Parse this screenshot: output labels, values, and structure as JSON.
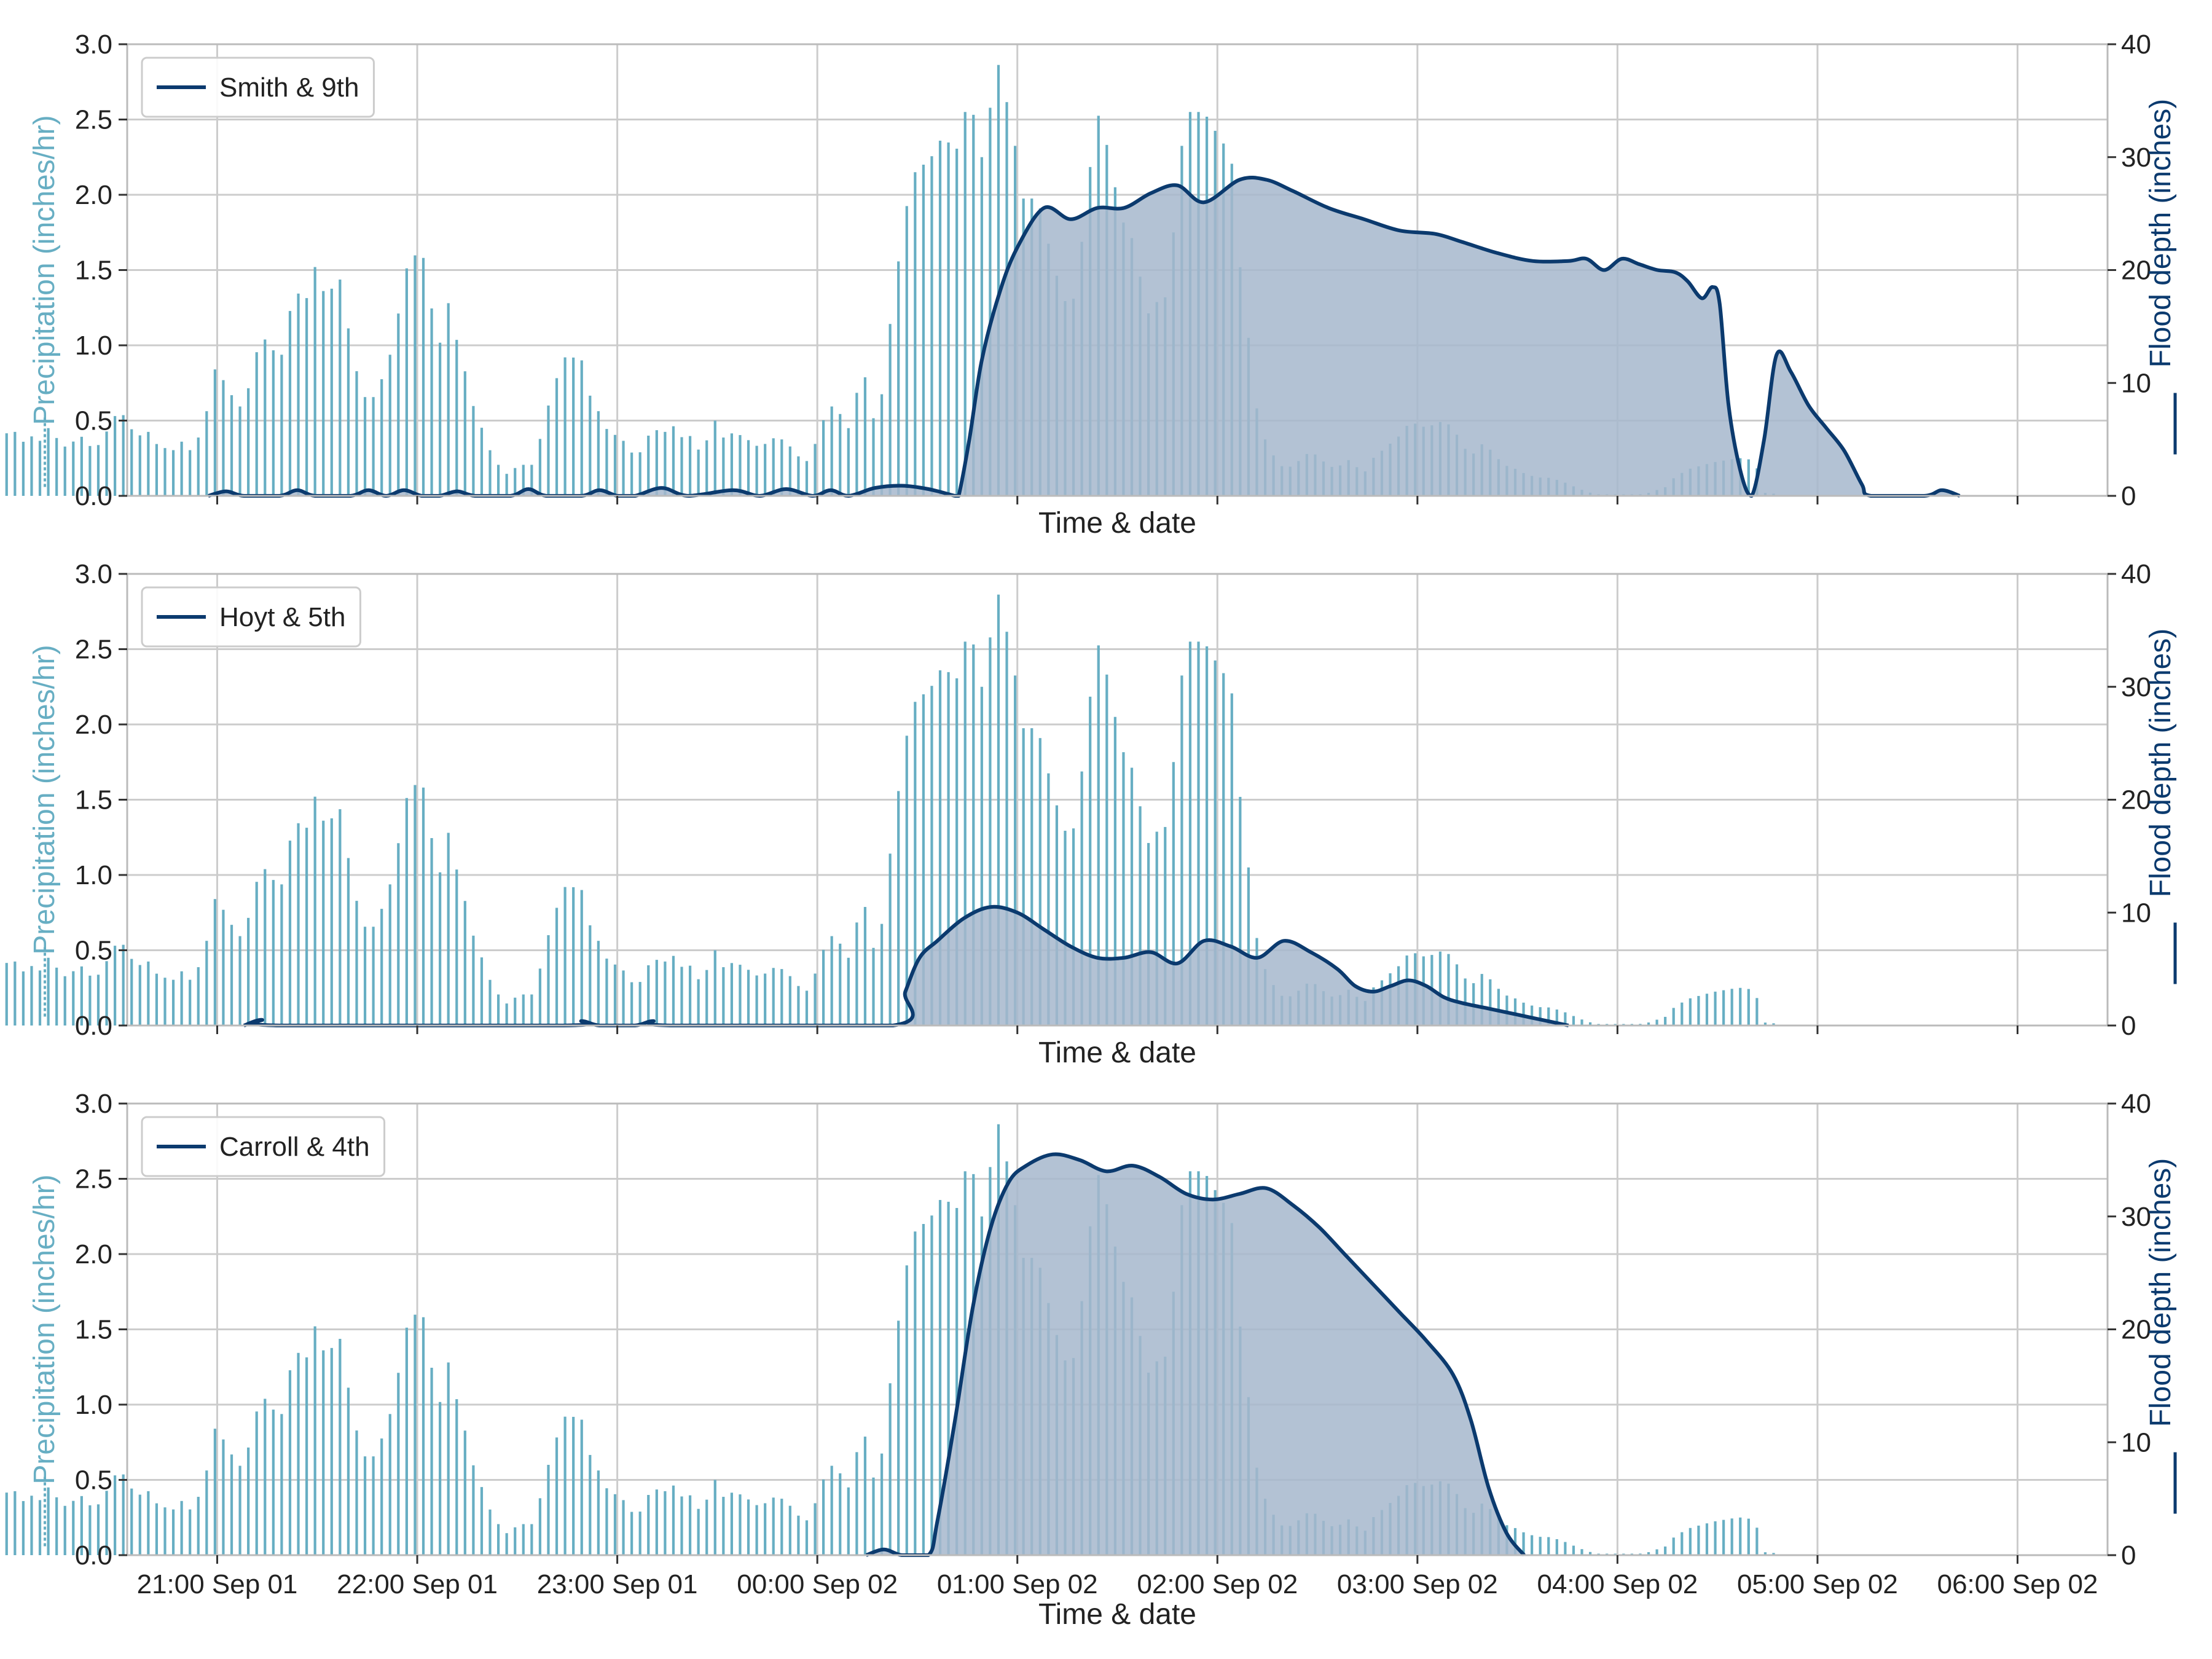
{
  "colors": {
    "precipitation": "#67aec3",
    "flood_line": "#0b3a6e",
    "flood_fill": "#a6b7cc",
    "grid": "#cccccc",
    "axes": "#bbbbbb",
    "text": "#222222"
  },
  "chart_data": {
    "type": "bar+area",
    "x_axis": {
      "label": "Time & date",
      "tick_labels": [
        "21:00 Sep 01",
        "22:00 Sep 01",
        "23:00 Sep 01",
        "00:00 Sep 02",
        "01:00 Sep 02",
        "02:00 Sep 02",
        "03:00 Sep 02",
        "04:00 Sep 02",
        "05:00 Sep 02",
        "06:00 Sep 02"
      ],
      "range_hours_after_2100": [
        -0.45,
        9.45
      ],
      "bar_interval_minutes": 2.5
    },
    "left_axis": {
      "label": "Precipitation (inches/hr)",
      "ylim": [
        0,
        3
      ],
      "ticks": [
        "0.0",
        "0.5",
        "1.0",
        "1.5",
        "2.0",
        "2.5",
        "3.0"
      ]
    },
    "right_axis": {
      "label": "Flood depth (inches)",
      "ylim": [
        0,
        40
      ],
      "ticks": [
        "0",
        "10",
        "20",
        "30",
        "40"
      ]
    },
    "grid": true,
    "legend_position": "top-left",
    "precipitation_anchors": [
      [
        0.1,
        0.13
      ],
      [
        0.12,
        0.12
      ],
      [
        0.15,
        0.1
      ],
      [
        0.19,
        0.08
      ],
      [
        0.23,
        0.08
      ],
      [
        0.27,
        0.02
      ],
      [
        0.32,
        0.03
      ],
      [
        0.38,
        0.02
      ],
      [
        0.42,
        0.02
      ],
      [
        0.48,
        0.01
      ],
      [
        0.55,
        0.01
      ],
      [
        0.6,
        0.01
      ],
      [
        0.65,
        0.02
      ],
      [
        0.7,
        0.08
      ],
      [
        0.75,
        0.15
      ],
      [
        0.8,
        0.25
      ],
      [
        0.85,
        0.35
      ],
      [
        0.9,
        0.4
      ],
      [
        0.95,
        0.42
      ],
      [
        1.0,
        0.3
      ],
      [
        1.05,
        0.38
      ],
      [
        1.1,
        0.36
      ],
      [
        1.15,
        0.33
      ],
      [
        1.2,
        0.4
      ],
      [
        1.25,
        0.47
      ],
      [
        1.3,
        0.56
      ],
      [
        1.35,
        0.4
      ],
      [
        1.4,
        0.45
      ],
      [
        1.45,
        0.35
      ],
      [
        1.5,
        0.4
      ],
      [
        1.55,
        0.36
      ],
      [
        1.6,
        0.45
      ],
      [
        1.65,
        0.38
      ],
      [
        1.7,
        0.32
      ],
      [
        1.75,
        0.37
      ],
      [
        1.8,
        0.4
      ],
      [
        1.85,
        0.3
      ],
      [
        1.9,
        0.36
      ],
      [
        1.95,
        0.48
      ],
      [
        2.0,
        0.58
      ],
      [
        2.05,
        0.48
      ],
      [
        2.1,
        0.38
      ],
      [
        2.15,
        0.45
      ],
      [
        2.2,
        0.35
      ],
      [
        2.25,
        0.32
      ],
      [
        2.3,
        0.3
      ],
      [
        2.35,
        0.36
      ],
      [
        2.4,
        0.3
      ],
      [
        2.45,
        0.4
      ],
      [
        2.5,
        0.6
      ],
      [
        2.55,
        0.92
      ],
      [
        2.6,
        0.7
      ],
      [
        2.65,
        0.65
      ],
      [
        2.7,
        0.55
      ],
      [
        2.75,
        0.88
      ],
      [
        2.8,
        1.05
      ],
      [
        2.85,
        1.02
      ],
      [
        2.9,
        0.85
      ],
      [
        2.95,
        1.2
      ],
      [
        3.0,
        1.35
      ],
      [
        3.05,
        1.3
      ],
      [
        3.1,
        1.52
      ],
      [
        3.15,
        1.35
      ],
      [
        3.2,
        1.38
      ],
      [
        3.25,
        1.45
      ],
      [
        3.3,
        1.0
      ],
      [
        3.35,
        0.75
      ],
      [
        3.4,
        0.6
      ],
      [
        3.45,
        0.7
      ],
      [
        3.5,
        0.85
      ],
      [
        3.55,
        1.05
      ],
      [
        3.6,
        1.48
      ],
      [
        3.65,
        1.58
      ],
      [
        3.7,
        1.65
      ],
      [
        3.75,
        1.28
      ],
      [
        3.8,
        1.0
      ],
      [
        3.85,
        1.28
      ],
      [
        3.9,
        1.02
      ],
      [
        3.95,
        0.8
      ],
      [
        4.0,
        0.55
      ],
      [
        4.05,
        0.42
      ],
      [
        4.1,
        0.25
      ],
      [
        4.15,
        0.18
      ],
      [
        4.2,
        0.12
      ],
      [
        4.25,
        0.25
      ],
      [
        4.3,
        0.15
      ],
      [
        4.35,
        0.3
      ],
      [
        4.4,
        0.55
      ],
      [
        4.45,
        0.75
      ],
      [
        4.5,
        0.92
      ],
      [
        4.55,
        0.92
      ],
      [
        4.6,
        0.9
      ],
      [
        4.65,
        0.65
      ],
      [
        4.7,
        0.55
      ],
      [
        4.75,
        0.42
      ],
      [
        4.8,
        0.4
      ],
      [
        4.85,
        0.35
      ],
      [
        4.9,
        0.25
      ],
      [
        4.95,
        0.32
      ],
      [
        5.0,
        0.48
      ],
      [
        5.05,
        0.38
      ],
      [
        5.1,
        0.5
      ],
      [
        5.15,
        0.38
      ],
      [
        5.2,
        0.42
      ],
      [
        5.25,
        0.3
      ],
      [
        5.3,
        0.36
      ],
      [
        5.35,
        0.5
      ],
      [
        5.4,
        0.38
      ],
      [
        5.45,
        0.42
      ],
      [
        5.5,
        0.4
      ],
      [
        5.55,
        0.36
      ],
      [
        5.6,
        0.32
      ],
      [
        5.65,
        0.36
      ],
      [
        5.7,
        0.4
      ],
      [
        5.75,
        0.35
      ],
      [
        5.8,
        0.3
      ],
      [
        5.85,
        0.2
      ],
      [
        5.9,
        0.3
      ],
      [
        5.95,
        0.48
      ],
      [
        6.0,
        0.6
      ],
      [
        6.05,
        0.55
      ],
      [
        6.1,
        0.45
      ],
      [
        6.15,
        0.7
      ],
      [
        6.2,
        0.8
      ],
      [
        6.25,
        0.45
      ],
      [
        6.3,
        0.75
      ],
      [
        6.35,
        1.32
      ],
      [
        6.4,
        1.7
      ],
      [
        6.45,
        2.1
      ],
      [
        6.5,
        2.2
      ],
      [
        6.55,
        2.2
      ],
      [
        6.6,
        2.35
      ],
      [
        6.65,
        2.38
      ],
      [
        6.7,
        2.25
      ],
      [
        6.75,
        2.55
      ],
      [
        6.8,
        2.55
      ],
      [
        6.85,
        2.25
      ],
      [
        6.9,
        2.6
      ],
      [
        6.95,
        2.9
      ],
      [
        7.0,
        2.55
      ],
      [
        7.05,
        2.25
      ],
      [
        7.1,
        1.85
      ],
      [
        7.15,
        2.05
      ],
      [
        7.2,
        1.8
      ],
      [
        7.25,
        1.55
      ],
      [
        7.3,
        1.35
      ],
      [
        7.35,
        1.2
      ],
      [
        7.4,
        1.55
      ],
      [
        7.45,
        2.1
      ],
      [
        7.5,
        2.55
      ],
      [
        7.55,
        2.35
      ],
      [
        7.6,
        2.05
      ],
      [
        7.65,
        1.8
      ],
      [
        7.7,
        1.7
      ],
      [
        7.75,
        1.4
      ],
      [
        7.8,
        1.15
      ],
      [
        7.85,
        1.35
      ],
      [
        7.9,
        1.3
      ],
      [
        7.95,
        2.1
      ],
      [
        8.0,
        2.55
      ],
      [
        8.05,
        2.55
      ],
      [
        8.1,
        2.55
      ],
      [
        8.15,
        2.45
      ],
      [
        8.2,
        2.35
      ],
      [
        8.25,
        2.3
      ],
      [
        8.3,
        1.55
      ],
      [
        8.35,
        1.05
      ],
      [
        8.4,
        0.55
      ],
      [
        8.45,
        0.35
      ],
      [
        8.5,
        0.25
      ],
      [
        8.55,
        0.18
      ],
      [
        8.6,
        0.2
      ],
      [
        8.65,
        0.25
      ],
      [
        8.7,
        0.3
      ],
      [
        8.75,
        0.25
      ],
      [
        8.8,
        0.2
      ],
      [
        8.85,
        0.18
      ],
      [
        8.9,
        0.25
      ],
      [
        8.95,
        0.2
      ],
      [
        9.0,
        0.15
      ],
      [
        9.05,
        0.25
      ],
      [
        9.1,
        0.3
      ],
      [
        9.15,
        0.35
      ],
      [
        9.2,
        0.4
      ],
      [
        9.25,
        0.48
      ],
      [
        9.3,
        0.48
      ],
      [
        9.35,
        0.45
      ],
      [
        9.4,
        0.48
      ],
      [
        9.45,
        0.5
      ],
      [
        9.5,
        0.45
      ],
      [
        9.55,
        0.35
      ],
      [
        9.6,
        0.25
      ],
      [
        9.65,
        0.35
      ],
      [
        9.7,
        0.32
      ],
      [
        9.75,
        0.25
      ],
      [
        9.8,
        0.2
      ],
      [
        9.85,
        0.18
      ],
      [
        9.9,
        0.15
      ],
      [
        9.95,
        0.13
      ],
      [
        10.0,
        0.12
      ],
      [
        10.05,
        0.12
      ],
      [
        10.1,
        0.1
      ],
      [
        10.15,
        0.08
      ],
      [
        10.2,
        0.05
      ],
      [
        10.25,
        0.03
      ],
      [
        10.3,
        0.01
      ],
      [
        10.55,
        0.01
      ],
      [
        10.6,
        0.02
      ],
      [
        10.65,
        0.04
      ],
      [
        10.7,
        0.06
      ],
      [
        10.75,
        0.13
      ],
      [
        10.8,
        0.16
      ],
      [
        10.85,
        0.19
      ],
      [
        10.9,
        0.2
      ],
      [
        10.95,
        0.22
      ],
      [
        11.0,
        0.23
      ],
      [
        11.05,
        0.24
      ],
      [
        11.1,
        0.25
      ],
      [
        11.15,
        0.25
      ],
      [
        11.2,
        0.22
      ],
      [
        11.25,
        0.02
      ],
      [
        11.35,
        0.01
      ]
    ],
    "panels": [
      {
        "series_name": "Smith & 9th",
        "flood_depth": [
          [
            2.5,
            0
          ],
          [
            2.6,
            0.4
          ],
          [
            2.7,
            0
          ],
          [
            2.9,
            0
          ],
          [
            3.0,
            0.5
          ],
          [
            3.1,
            0
          ],
          [
            3.3,
            0
          ],
          [
            3.4,
            0.5
          ],
          [
            3.5,
            0
          ],
          [
            3.6,
            0.5
          ],
          [
            3.7,
            0
          ],
          [
            3.8,
            0
          ],
          [
            3.9,
            0.4
          ],
          [
            4.0,
            0
          ],
          [
            4.2,
            0
          ],
          [
            4.3,
            0.6
          ],
          [
            4.4,
            0
          ],
          [
            4.6,
            0
          ],
          [
            4.7,
            0.5
          ],
          [
            4.8,
            0
          ],
          [
            4.9,
            0
          ],
          [
            5.05,
            0.7
          ],
          [
            5.2,
            0
          ],
          [
            5.45,
            0.5
          ],
          [
            5.6,
            0
          ],
          [
            5.75,
            0.6
          ],
          [
            5.9,
            0
          ],
          [
            6.0,
            0.5
          ],
          [
            6.1,
            0
          ],
          [
            6.25,
            0.7
          ],
          [
            6.4,
            0.9
          ],
          [
            6.55,
            0.6
          ],
          [
            6.7,
            0
          ],
          [
            6.72,
            0
          ],
          [
            6.78,
            5
          ],
          [
            6.85,
            12
          ],
          [
            6.95,
            18
          ],
          [
            7.05,
            22
          ],
          [
            7.2,
            25.5
          ],
          [
            7.35,
            24.5
          ],
          [
            7.5,
            25.5
          ],
          [
            7.65,
            25.5
          ],
          [
            7.8,
            26.8
          ],
          [
            7.95,
            27.5
          ],
          [
            8.1,
            26
          ],
          [
            8.3,
            28
          ],
          [
            8.45,
            28
          ],
          [
            8.6,
            27
          ],
          [
            8.8,
            25.5
          ],
          [
            9.0,
            24.5
          ],
          [
            9.2,
            23.5
          ],
          [
            9.4,
            23.2
          ],
          [
            9.55,
            22.5
          ],
          [
            9.75,
            21.5
          ],
          [
            9.95,
            20.8
          ],
          [
            10.15,
            20.8
          ],
          [
            10.25,
            21
          ],
          [
            10.35,
            20
          ],
          [
            10.45,
            21
          ],
          [
            10.55,
            20.5
          ],
          [
            10.65,
            20
          ],
          [
            10.75,
            19.8
          ],
          [
            10.82,
            19
          ],
          [
            10.9,
            17.5
          ],
          [
            10.96,
            18.5
          ],
          [
            11.0,
            17
          ],
          [
            11.05,
            8
          ],
          [
            11.12,
            2
          ],
          [
            11.18,
            0
          ],
          [
            11.25,
            5
          ],
          [
            11.32,
            12.5
          ],
          [
            11.4,
            11
          ],
          [
            11.5,
            8
          ],
          [
            11.6,
            6
          ],
          [
            11.7,
            4
          ],
          [
            11.8,
            1
          ],
          [
            11.85,
            0
          ],
          [
            12.15,
            0
          ],
          [
            12.25,
            0.5
          ],
          [
            12.35,
            0
          ]
        ]
      },
      {
        "series_name": "Hoyt & 5th",
        "flood_depth": [
          [
            2.7,
            0
          ],
          [
            2.8,
            0.5
          ],
          [
            2.9,
            0
          ],
          [
            4.5,
            0
          ],
          [
            4.6,
            0.4
          ],
          [
            4.7,
            0
          ],
          [
            4.9,
            0
          ],
          [
            5.0,
            0.4
          ],
          [
            5.1,
            0
          ],
          [
            6.35,
            0
          ],
          [
            6.42,
            3
          ],
          [
            6.5,
            6
          ],
          [
            6.6,
            7.5
          ],
          [
            6.75,
            9.5
          ],
          [
            6.9,
            10.5
          ],
          [
            7.05,
            10
          ],
          [
            7.2,
            8.5
          ],
          [
            7.35,
            7
          ],
          [
            7.5,
            6
          ],
          [
            7.65,
            6
          ],
          [
            7.8,
            6.5
          ],
          [
            7.95,
            5.5
          ],
          [
            8.1,
            7.5
          ],
          [
            8.25,
            7
          ],
          [
            8.4,
            6
          ],
          [
            8.55,
            7.5
          ],
          [
            8.7,
            6.5
          ],
          [
            8.85,
            5
          ],
          [
            8.95,
            3.5
          ],
          [
            9.05,
            3
          ],
          [
            9.15,
            3.5
          ],
          [
            9.25,
            4
          ],
          [
            9.35,
            3.5
          ],
          [
            9.45,
            2.5
          ],
          [
            9.55,
            2
          ],
          [
            9.7,
            1.5
          ],
          [
            9.85,
            1
          ],
          [
            10.0,
            0.5
          ],
          [
            10.15,
            0
          ]
        ]
      },
      {
        "series_name": "Carroll & 4th",
        "flood_depth": [
          [
            6.2,
            0
          ],
          [
            6.3,
            0.5
          ],
          [
            6.4,
            0
          ],
          [
            6.55,
            0
          ],
          [
            6.6,
            3
          ],
          [
            6.7,
            12
          ],
          [
            6.8,
            22
          ],
          [
            6.9,
            29
          ],
          [
            7.0,
            33
          ],
          [
            7.1,
            34.5
          ],
          [
            7.25,
            35.5
          ],
          [
            7.4,
            35
          ],
          [
            7.55,
            34
          ],
          [
            7.7,
            34.5
          ],
          [
            7.85,
            33.5
          ],
          [
            8.0,
            32
          ],
          [
            8.15,
            31.5
          ],
          [
            8.3,
            32
          ],
          [
            8.45,
            32.5
          ],
          [
            8.6,
            31
          ],
          [
            8.75,
            29
          ],
          [
            8.9,
            26.5
          ],
          [
            9.05,
            24
          ],
          [
            9.2,
            21.5
          ],
          [
            9.35,
            19
          ],
          [
            9.5,
            16
          ],
          [
            9.6,
            12
          ],
          [
            9.7,
            6
          ],
          [
            9.8,
            2
          ],
          [
            9.9,
            0
          ]
        ]
      }
    ]
  }
}
